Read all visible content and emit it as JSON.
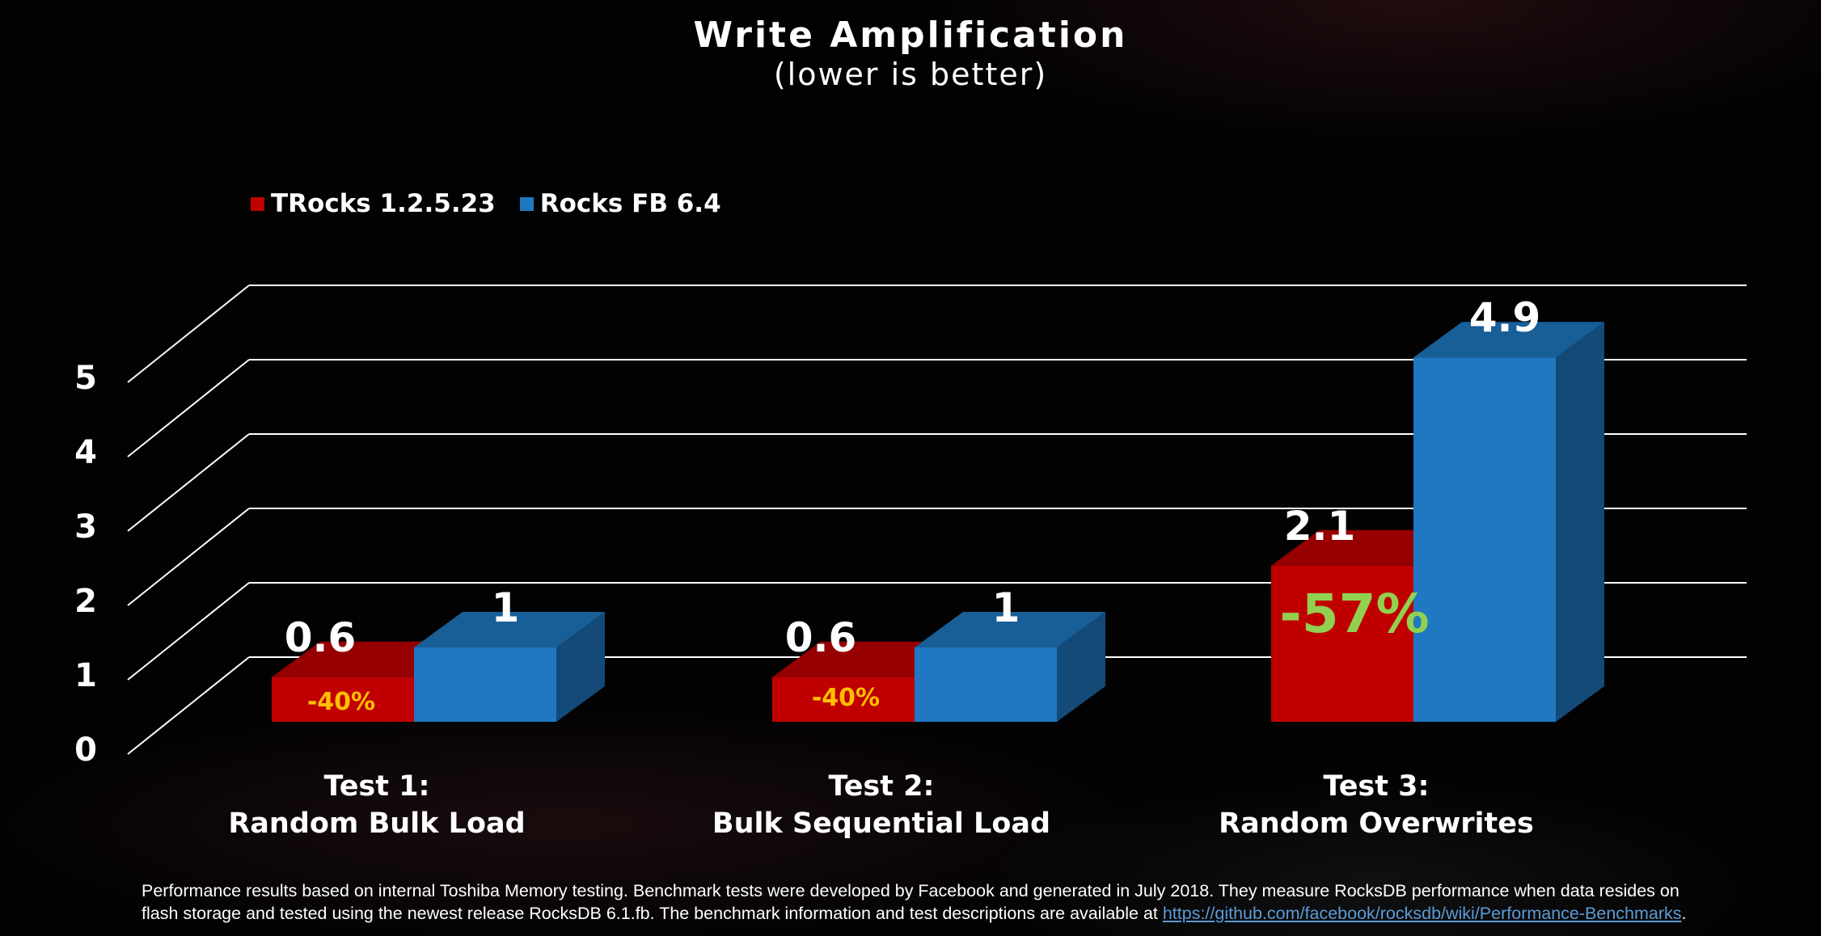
{
  "chart_data": {
    "type": "bar",
    "title": "Write Amplification",
    "subtitle": "(lower is better)",
    "ylim": [
      0,
      5
    ],
    "y_ticks": [
      "0",
      "1",
      "2",
      "3",
      "4",
      "5"
    ],
    "grid": true,
    "legend_position": "top-left",
    "categories": [
      {
        "line1": "Test 1:",
        "line2": "Random Bulk Load"
      },
      {
        "line1": "Test 2:",
        "line2": "Bulk Sequential Load"
      },
      {
        "line1": "Test 3:",
        "line2": "Random Overwrites"
      }
    ],
    "series": [
      {
        "name": "TRocks 1.2.5.23",
        "color": "#c00000",
        "values": [
          0.6,
          0.6,
          2.1
        ],
        "labels": [
          "0.6",
          "0.6",
          "2.1"
        ]
      },
      {
        "name": "Rocks FB 6.4",
        "color": "#1f78c1",
        "values": [
          1,
          1,
          4.9
        ],
        "labels": [
          "1",
          "1",
          "4.9"
        ]
      }
    ],
    "annotations": [
      {
        "text": "-40%",
        "category": 0,
        "color": "#ffc000"
      },
      {
        "text": "-40%",
        "category": 1,
        "color": "#ffc000"
      },
      {
        "text": "-57%",
        "category": 2,
        "color": "#92d050"
      }
    ]
  },
  "footnote": {
    "text": "Performance results based on internal Toshiba Memory testing. Benchmark tests were developed by Facebook and generated in July 2018. They measure RocksDB performance when data resides on flash storage and tested using the newest release RocksDB 6.1.fb.  The benchmark information and test descriptions are available at ",
    "link": "https://github.com/facebook/rocksdb/wiki/Performance-Benchmarks",
    "end": "."
  }
}
